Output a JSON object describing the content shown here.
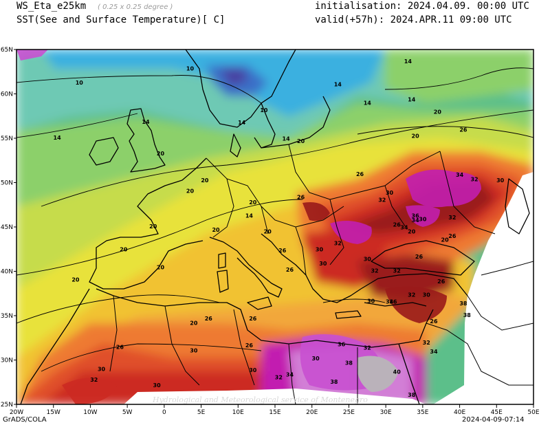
{
  "header": {
    "model": "WS_Eta_e25km",
    "resolution": "( 0.25 x 0.25 degree )",
    "variable": "SST(See and Surface Temperature)[ C]",
    "init_label": "initialisation:",
    "init_value": "2024.04.09. 00:00 UTC",
    "valid_label": "valid(+57h):",
    "valid_value": "2024.APR.11 09:00 UTC"
  },
  "footer": {
    "left": "GrADS/COLA",
    "right": "2024-04-09-07:14"
  },
  "watermark": "Hydrological and Meteorological service of Montenegro",
  "axes": {
    "x_ticks": [
      "20W",
      "15W",
      "10W",
      "5W",
      "0",
      "5E",
      "10E",
      "15E",
      "20E",
      "25E",
      "30E",
      "35E",
      "40E",
      "45E",
      "50E"
    ],
    "y_ticks": [
      "65N",
      "60N",
      "55N",
      "50N",
      "45N",
      "40N",
      "35N",
      "30N",
      "25N"
    ]
  },
  "contour_labels": [
    {
      "t": "10",
      "lon": -11.5,
      "lat": 61.2
    },
    {
      "t": "10",
      "lon": 3.5,
      "lat": 62.8
    },
    {
      "t": "10",
      "lon": 13.5,
      "lat": 58.1
    },
    {
      "t": "14",
      "lon": -14.5,
      "lat": 55.0
    },
    {
      "t": "14",
      "lon": -2.5,
      "lat": 56.8
    },
    {
      "t": "14",
      "lon": 10.5,
      "lat": 56.7
    },
    {
      "t": "14",
      "lon": 16.5,
      "lat": 54.9
    },
    {
      "t": "14",
      "lon": 23.5,
      "lat": 61.0
    },
    {
      "t": "14",
      "lon": 27.5,
      "lat": 58.9
    },
    {
      "t": "14",
      "lon": 33.0,
      "lat": 63.6
    },
    {
      "t": "14",
      "lon": 33.5,
      "lat": 59.3
    },
    {
      "t": "14",
      "lon": 11.5,
      "lat": 46.2
    },
    {
      "t": "20",
      "lon": -0.5,
      "lat": 53.2
    },
    {
      "t": "20",
      "lon": 3.5,
      "lat": 49.0
    },
    {
      "t": "20",
      "lon": 5.5,
      "lat": 50.2
    },
    {
      "t": "20",
      "lon": -1.5,
      "lat": 45.0
    },
    {
      "t": "20",
      "lon": -5.5,
      "lat": 42.4
    },
    {
      "t": "20",
      "lon": -12.0,
      "lat": 39.0
    },
    {
      "t": "20",
      "lon": -0.5,
      "lat": 40.4
    },
    {
      "t": "20",
      "lon": 4.0,
      "lat": 34.1
    },
    {
      "t": "20",
      "lon": 7.0,
      "lat": 44.6
    },
    {
      "t": "20",
      "lon": 12.0,
      "lat": 47.7
    },
    {
      "t": "20",
      "lon": 14.0,
      "lat": 44.4
    },
    {
      "t": "20",
      "lon": 18.5,
      "lat": 54.6
    },
    {
      "t": "20",
      "lon": 34.0,
      "lat": 55.2
    },
    {
      "t": "20",
      "lon": 37.0,
      "lat": 57.9
    },
    {
      "t": "20",
      "lon": 38.0,
      "lat": 43.5
    },
    {
      "t": "20",
      "lon": 33.5,
      "lat": 44.4
    },
    {
      "t": "26",
      "lon": 18.5,
      "lat": 48.3
    },
    {
      "t": "26",
      "lon": 16.0,
      "lat": 42.3
    },
    {
      "t": "26",
      "lon": 17.0,
      "lat": 40.1
    },
    {
      "t": "26",
      "lon": 26.5,
      "lat": 50.9
    },
    {
      "t": "26",
      "lon": 40.5,
      "lat": 55.9
    },
    {
      "t": "26",
      "lon": 31.5,
      "lat": 45.2
    },
    {
      "t": "26",
      "lon": 37.5,
      "lat": 38.8
    },
    {
      "t": "26",
      "lon": 34.5,
      "lat": 41.6
    },
    {
      "t": "26",
      "lon": 36.5,
      "lat": 34.3
    },
    {
      "t": "26",
      "lon": 6.0,
      "lat": 34.6
    },
    {
      "t": "26",
      "lon": 12.0,
      "lat": 34.6
    },
    {
      "t": "26",
      "lon": -6.0,
      "lat": 31.4
    },
    {
      "t": "26",
      "lon": 11.5,
      "lat": 31.6
    },
    {
      "t": "26",
      "lon": 39.0,
      "lat": 43.9
    },
    {
      "t": "30",
      "lon": -8.5,
      "lat": 28.9
    },
    {
      "t": "30",
      "lon": 4.0,
      "lat": 31.0
    },
    {
      "t": "30",
      "lon": 12.0,
      "lat": 28.8
    },
    {
      "t": "30",
      "lon": -1.0,
      "lat": 27.1
    },
    {
      "t": "30",
      "lon": 20.5,
      "lat": 30.1
    },
    {
      "t": "30",
      "lon": 21.0,
      "lat": 42.4
    },
    {
      "t": "30",
      "lon": 21.5,
      "lat": 40.8
    },
    {
      "t": "30",
      "lon": 27.5,
      "lat": 41.3
    },
    {
      "t": "30",
      "lon": 35.0,
      "lat": 45.8
    },
    {
      "t": "30",
      "lon": 35.5,
      "lat": 37.3
    },
    {
      "t": "30",
      "lon": 28.0,
      "lat": 36.6
    },
    {
      "t": "30",
      "lon": 30.5,
      "lat": 48.8
    },
    {
      "t": "30",
      "lon": 45.5,
      "lat": 50.2
    },
    {
      "t": "32",
      "lon": 23.5,
      "lat": 43.1
    },
    {
      "t": "32",
      "lon": 29.5,
      "lat": 48.0
    },
    {
      "t": "32",
      "lon": 42.0,
      "lat": 50.3
    },
    {
      "t": "32",
      "lon": 39.0,
      "lat": 46.0
    },
    {
      "t": "32",
      "lon": 31.5,
      "lat": 40.0
    },
    {
      "t": "32",
      "lon": 33.5,
      "lat": 37.3
    },
    {
      "t": "32",
      "lon": 35.5,
      "lat": 31.9
    },
    {
      "t": "32",
      "lon": 15.5,
      "lat": 28.0
    },
    {
      "t": "32",
      "lon": -9.5,
      "lat": 27.7
    },
    {
      "t": "32",
      "lon": 27.5,
      "lat": 31.3
    },
    {
      "t": "32",
      "lon": 28.5,
      "lat": 40.0
    },
    {
      "t": "34",
      "lon": 40.0,
      "lat": 50.8
    },
    {
      "t": "34",
      "lon": 34.0,
      "lat": 45.7
    },
    {
      "t": "34",
      "lon": 32.5,
      "lat": 44.9
    },
    {
      "t": "34",
      "lon": 30.5,
      "lat": 36.5
    },
    {
      "t": "34",
      "lon": 36.5,
      "lat": 30.9
    },
    {
      "t": "34",
      "lon": 17.0,
      "lat": 28.3
    },
    {
      "t": "36",
      "lon": 34.0,
      "lat": 46.2
    },
    {
      "t": "36",
      "lon": 31.0,
      "lat": 36.5
    },
    {
      "t": "36",
      "lon": 24.0,
      "lat": 31.7
    },
    {
      "t": "38",
      "lon": 40.5,
      "lat": 36.3
    },
    {
      "t": "38",
      "lon": 41.0,
      "lat": 35.0
    },
    {
      "t": "38",
      "lon": 25.0,
      "lat": 29.6
    },
    {
      "t": "38",
      "lon": 23.0,
      "lat": 27.5
    },
    {
      "t": "38",
      "lon": 33.5,
      "lat": 26.0
    },
    {
      "t": "40",
      "lon": 31.5,
      "lat": 28.6
    }
  ],
  "colors": {
    "c8": "#4a3fa0",
    "c9": "#3a6fc8",
    "c10": "#3ab0e0",
    "c12": "#5bc8d8",
    "c13": "#6ec9b4",
    "c14": "#5cbf8a",
    "c16": "#8cd06a",
    "c18": "#c6dc4c",
    "c20": "#e8e23a",
    "c22": "#f1c232",
    "c24": "#f2a73a",
    "c26": "#ee7a32",
    "c28": "#e0502a",
    "c30": "#cc2a22",
    "c32": "#9a1a1a",
    "c34": "#c21fb0",
    "c36": "#c850d0",
    "c38": "#d27ed6",
    "c40": "#b8b8b8"
  }
}
